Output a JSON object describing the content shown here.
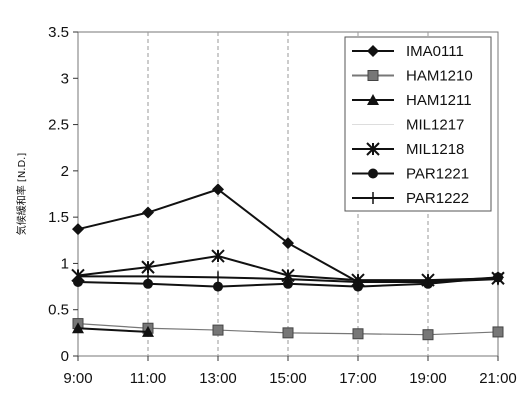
{
  "chart_data": {
    "type": "line",
    "title": "",
    "xlabel": "",
    "ylabel": "気候緩和率 [N.D.]",
    "categories": [
      "9:00",
      "11:00",
      "13:00",
      "15:00",
      "17:00",
      "19:00",
      "21:00"
    ],
    "yticks": [
      "0",
      "0.5",
      "1",
      "1.5",
      "2",
      "2.5",
      "3",
      "3.5"
    ],
    "ylim": [
      0,
      3.5
    ],
    "grid": "vertical-dashed",
    "legend": "top-right",
    "series": [
      {
        "name": "IMA0111",
        "marker": "diamond",
        "color": "#111111",
        "values": [
          1.37,
          1.55,
          1.8,
          1.22,
          0.8,
          0.8,
          0.85
        ]
      },
      {
        "name": "HAM1210",
        "marker": "square",
        "color": "#777777",
        "values": [
          0.35,
          0.3,
          0.28,
          0.25,
          0.24,
          0.23,
          0.26
        ]
      },
      {
        "name": "HAM1211",
        "marker": "triangle",
        "color": "#111111",
        "values": [
          0.3,
          0.26,
          null,
          null,
          null,
          null,
          null
        ]
      },
      {
        "name": "MIL1217",
        "marker": "none",
        "color": "#bbbbbb",
        "values": [
          null,
          null,
          null,
          null,
          null,
          null,
          null
        ]
      },
      {
        "name": "MIL1218",
        "marker": "star",
        "color": "#111111",
        "values": [
          0.87,
          0.96,
          1.08,
          0.87,
          0.82,
          0.82,
          0.84
        ]
      },
      {
        "name": "PAR1221",
        "marker": "circle",
        "color": "#111111",
        "values": [
          0.8,
          0.78,
          0.75,
          0.78,
          0.75,
          0.78,
          0.85
        ]
      },
      {
        "name": "PAR1222",
        "marker": "plus",
        "color": "#111111",
        "values": [
          0.86,
          0.86,
          0.85,
          0.83,
          0.8,
          0.8,
          0.83
        ]
      }
    ]
  }
}
